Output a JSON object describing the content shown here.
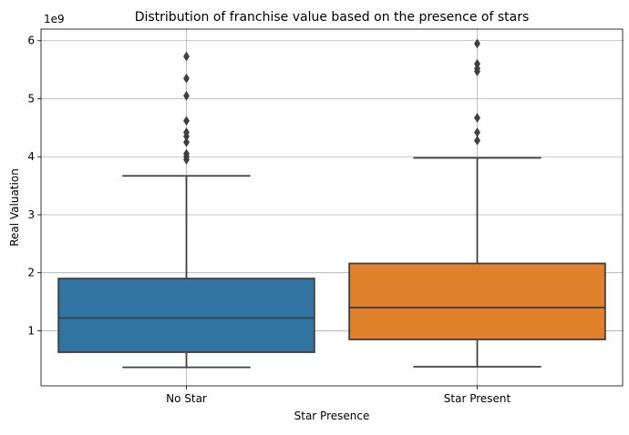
{
  "chart_data": {
    "type": "box",
    "title": "Distribution of franchise value based on the presence of stars",
    "xlabel": "Star Presence",
    "ylabel": "Real Valuation",
    "y_offset_label": "1e9",
    "y_ticks": [
      1,
      2,
      3,
      4,
      5,
      6
    ],
    "ylim": [
      0.05,
      6.2
    ],
    "grid": true,
    "categories": [
      "No Star",
      "Star Present"
    ],
    "series": [
      {
        "category": "No Star",
        "color": "#3274a1",
        "whisker_low": 0.37,
        "q1": 0.63,
        "median": 1.22,
        "q3": 1.9,
        "whisker_high": 3.67,
        "outliers": [
          3.95,
          4.0,
          4.05,
          4.25,
          4.35,
          4.42,
          4.62,
          5.05,
          5.35,
          5.73
        ]
      },
      {
        "category": "Star Present",
        "color": "#e1812c",
        "whisker_low": 0.38,
        "q1": 0.85,
        "median": 1.4,
        "q3": 2.16,
        "whisker_high": 3.98,
        "outliers": [
          4.28,
          4.42,
          4.67,
          5.47,
          5.52,
          5.6,
          5.95
        ]
      }
    ]
  }
}
